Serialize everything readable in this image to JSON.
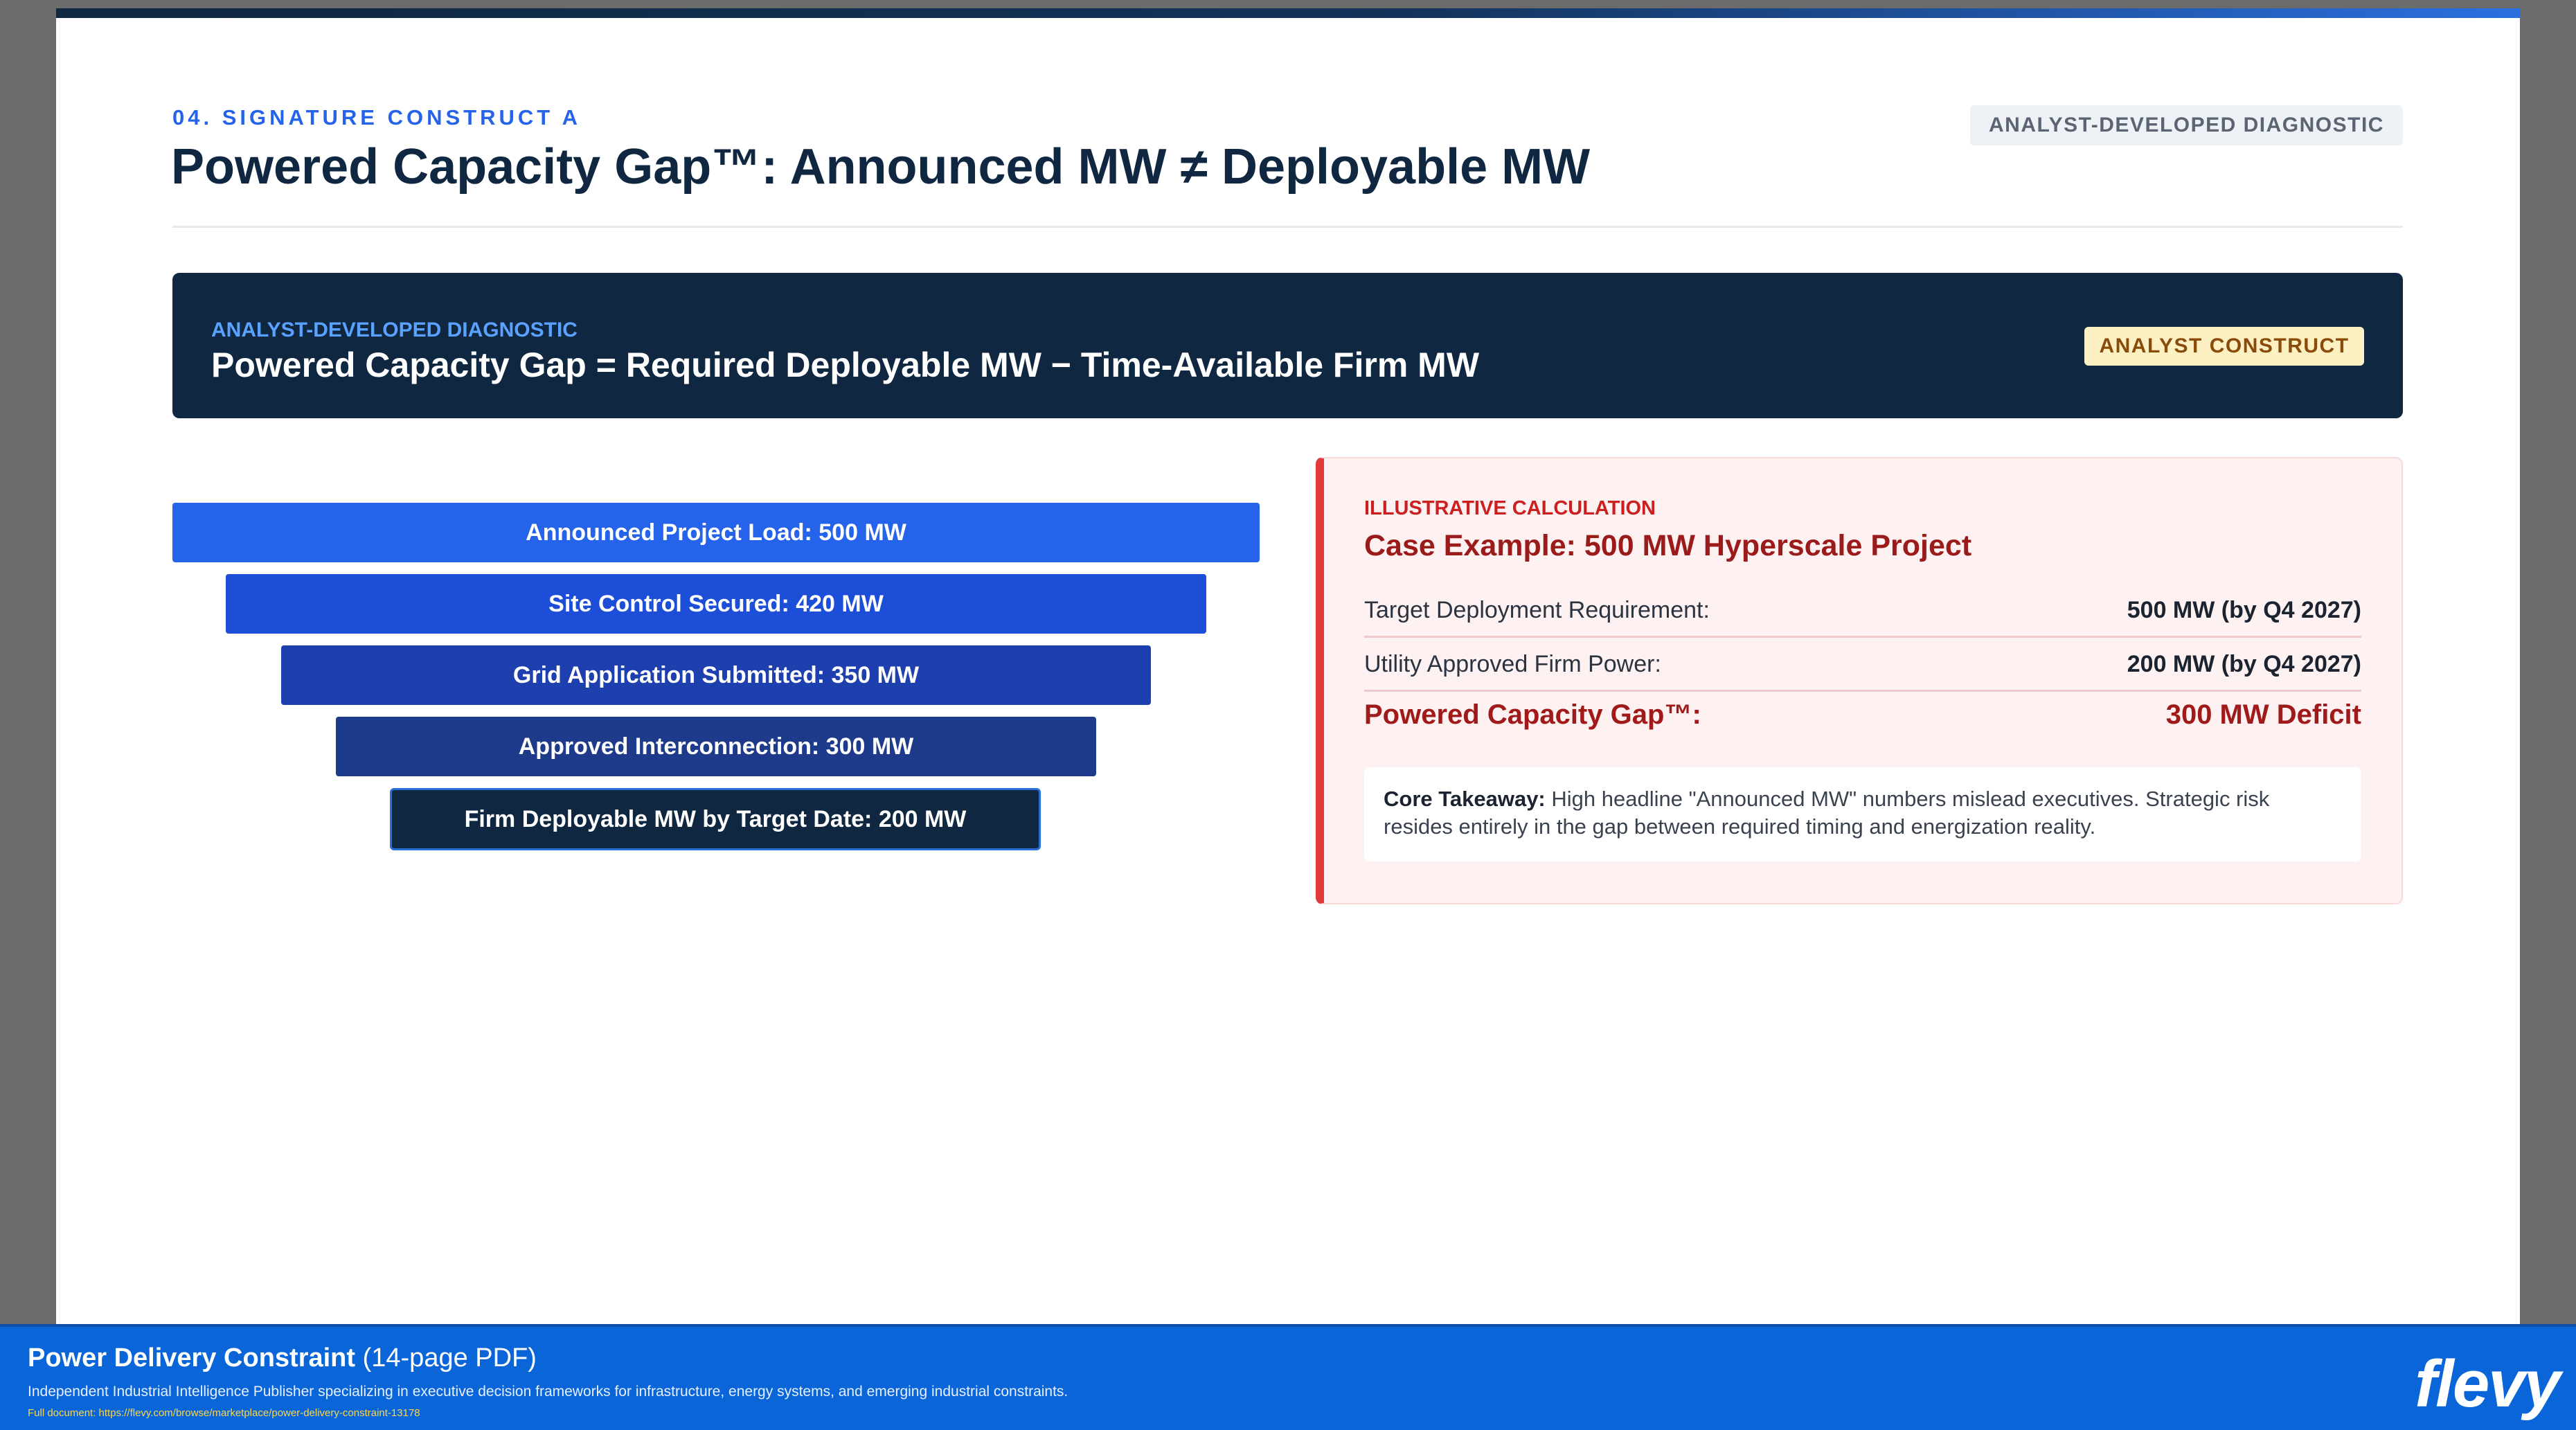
{
  "header": {
    "section_label": "04. SIGNATURE CONSTRUCT A",
    "title": "Powered Capacity Gap™: Announced MW ≠ Deployable MW",
    "badge": "ANALYST-DEVELOPED DIAGNOSTIC"
  },
  "formula": {
    "label": "ANALYST-DEVELOPED DIAGNOSTIC",
    "text": "Powered Capacity Gap = Required Deployable MW − Time-Available Firm MW",
    "badge": "ANALYST CONSTRUCT"
  },
  "funnel": {
    "stages": [
      {
        "label": "Announced Project Load: 500 MW",
        "value_mw": 500,
        "color": "#2563eb"
      },
      {
        "label": "Site Control Secured: 420 MW",
        "value_mw": 420,
        "color": "#1d4ed8"
      },
      {
        "label": "Grid Application Submitted: 350 MW",
        "value_mw": 350,
        "color": "#1e3fae"
      },
      {
        "label": "Approved Interconnection: 300 MW",
        "value_mw": 300,
        "color": "#1e3a8a"
      },
      {
        "label": "Firm Deployable MW by Target Date: 200 MW",
        "value_mw": 200,
        "color": "#0f2740"
      }
    ]
  },
  "calculation": {
    "label": "ILLUSTRATIVE CALCULATION",
    "title": "Case Example: 500 MW Hyperscale Project",
    "rows": [
      {
        "key": "Target Deployment Requirement:",
        "value": "500 MW (by Q4 2027)"
      },
      {
        "key": "Utility Approved Firm Power:",
        "value": "200 MW (by Q4 2027)"
      }
    ],
    "gap": {
      "key": "Powered Capacity Gap™:",
      "value": "300 MW Deficit"
    },
    "takeaway_lead": "Core Takeaway:",
    "takeaway_text": "High headline \"Announced MW\" numbers mislead executives. Strategic risk resides entirely in the gap between required timing and energization reality."
  },
  "footer": {
    "doc_name": "Power Delivery Constraint",
    "doc_pages": "(14-page PDF)",
    "description": "Independent Industrial Intelligence Publisher specializing in executive decision frameworks for infrastructure, energy systems, and emerging industrial constraints.",
    "link": "Full document: https://flevy.com/browse/marketplace/power-delivery-constraint-13178",
    "logo": "flevy"
  }
}
